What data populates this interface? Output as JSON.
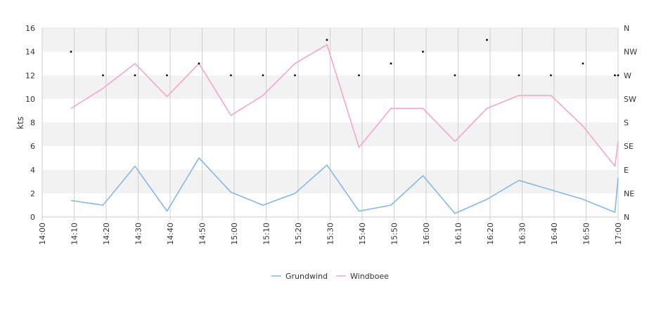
{
  "chart_data": {
    "type": "line",
    "xlabel": "",
    "ylabel": "kts",
    "ylim": [
      0,
      16
    ],
    "y_ticks": [
      "0",
      "2",
      "4",
      "6",
      "8",
      "10",
      "12",
      "14",
      "16"
    ],
    "y2_ticks": [
      "N",
      "NE",
      "E",
      "SE",
      "S",
      "SW",
      "W",
      "NW",
      "N"
    ],
    "x_ticks": [
      "14:00",
      "14:10",
      "14:20",
      "14:30",
      "14:40",
      "14:50",
      "15:00",
      "15:10",
      "15:20",
      "15:30",
      "15:40",
      "15:50",
      "16:00",
      "16:10",
      "16:20",
      "16:30",
      "16:40",
      "16:50",
      "17:00"
    ],
    "x": [
      "14:09",
      "14:19",
      "14:29",
      "14:39",
      "14:49",
      "14:59",
      "15:09",
      "15:19",
      "15:29",
      "15:39",
      "15:49",
      "15:59",
      "16:09",
      "16:19",
      "16:29",
      "16:39",
      "16:49",
      "16:59",
      "17:00"
    ],
    "legend_position": "bottom",
    "grid": true,
    "series": [
      {
        "name": "Grundwind",
        "color": "#7cb5ec",
        "values": [
          1.4,
          1.0,
          4.3,
          0.5,
          5.0,
          2.1,
          1.0,
          2.0,
          4.4,
          0.5,
          1.0,
          3.5,
          0.3,
          1.5,
          3.1,
          2.3,
          1.5,
          0.4,
          3.3
        ]
      },
      {
        "name": "Windboee",
        "color": "#f7a1c4",
        "values": [
          9.2,
          10.9,
          13.0,
          10.2,
          13.0,
          8.6,
          10.3,
          13.0,
          14.6,
          5.9,
          9.2,
          9.2,
          6.4,
          9.2,
          10.3,
          10.3,
          7.7,
          4.3,
          6.4
        ]
      }
    ],
    "direction_points": {
      "x": [
        "14:09",
        "14:19",
        "14:29",
        "14:39",
        "14:49",
        "14:59",
        "15:09",
        "15:19",
        "15:29",
        "15:39",
        "15:49",
        "15:59",
        "16:09",
        "16:19",
        "16:29",
        "16:39",
        "16:49",
        "16:59",
        "17:00"
      ],
      "values": [
        14,
        12,
        12,
        12,
        13,
        12,
        12,
        12,
        15,
        12,
        13,
        14,
        12,
        15,
        12,
        12,
        13,
        12,
        12
      ],
      "color": "#000000"
    }
  }
}
